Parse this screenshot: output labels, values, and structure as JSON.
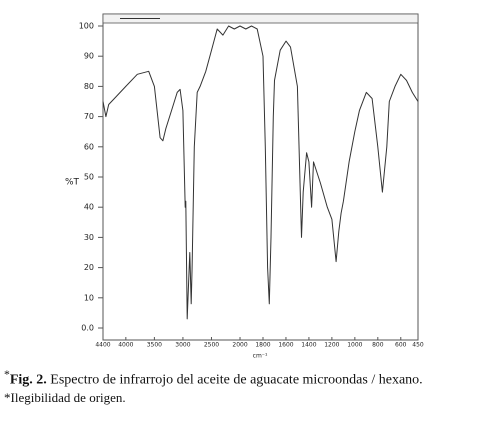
{
  "chart_data": {
    "type": "line",
    "y_label": "%T",
    "x_label": "cm⁻¹",
    "color": "#333333",
    "xlim": [
      4400,
      450
    ],
    "ylim": [
      0,
      100
    ],
    "xticks": [
      4400,
      4000,
      3500,
      3000,
      2500,
      2000,
      1800,
      1600,
      1400,
      1200,
      1000,
      800,
      600,
      450
    ],
    "yticks": [
      {
        "value": 0,
        "label": "0.0"
      },
      10,
      20,
      30,
      40,
      50,
      60,
      70,
      80,
      90,
      100
    ],
    "x": [
      4400,
      4350,
      4300,
      4200,
      4000,
      3800,
      3600,
      3500,
      3400,
      3350,
      3300,
      3200,
      3100,
      3050,
      3000,
      2960,
      2950,
      2925,
      2900,
      2880,
      2855,
      2840,
      2800,
      2750,
      2700,
      2600,
      2500,
      2400,
      2300,
      2200,
      2100,
      2000,
      1950,
      1900,
      1850,
      1800,
      1780,
      1760,
      1745,
      1730,
      1710,
      1700,
      1650,
      1600,
      1560,
      1500,
      1465,
      1450,
      1420,
      1400,
      1377,
      1360,
      1300,
      1240,
      1200,
      1163,
      1140,
      1120,
      1100,
      1050,
      1000,
      960,
      900,
      850,
      800,
      760,
      722,
      700,
      650,
      600,
      550,
      500,
      450
    ],
    "values": [
      75,
      70,
      74,
      76,
      80,
      84,
      85,
      80,
      63,
      62,
      66,
      72,
      78,
      79,
      72,
      40,
      42,
      3,
      15,
      25,
      8,
      20,
      60,
      78,
      80,
      85,
      92,
      99,
      97,
      100,
      99,
      100,
      99,
      100,
      99,
      90,
      60,
      20,
      8,
      30,
      70,
      82,
      92,
      95,
      93,
      80,
      30,
      45,
      58,
      55,
      40,
      55,
      48,
      40,
      36,
      22,
      32,
      38,
      42,
      55,
      65,
      72,
      78,
      76,
      60,
      45,
      60,
      75,
      80,
      84,
      82,
      78,
      75
    ]
  },
  "caption": {
    "marker": "*",
    "label": "Fig. 2.",
    "text": "Espectro de infrarrojo del aceite de aguacate microondas / hexano.",
    "note": "*Ilegibilidad de origen."
  }
}
